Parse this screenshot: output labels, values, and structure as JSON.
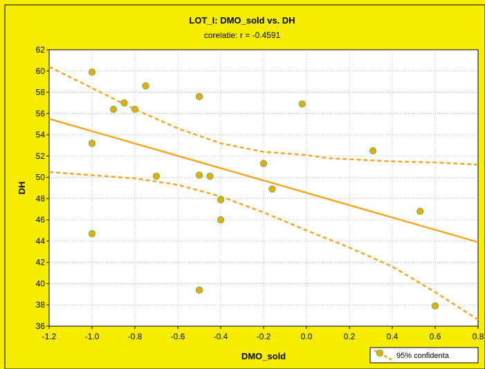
{
  "chart_data": {
    "type": "scatter",
    "title": "LOT_I: DMO_sold vs. DH",
    "subtitle": "corelatie: r = -0.4591",
    "xlabel": "DMO_sold",
    "ylabel": "DH",
    "xlim": [
      -1.2,
      0.8
    ],
    "ylim": [
      36,
      62
    ],
    "x_ticks": [
      -1.2,
      -1.0,
      -0.8,
      -0.6,
      -0.4,
      -0.2,
      0.0,
      0.2,
      0.4,
      0.6,
      0.8
    ],
    "x_tick_labels": [
      "-1.2",
      "-1.0",
      "-0.8",
      "-0.6",
      "-0.4",
      "-0.2",
      "0.0",
      "0.2",
      "0.4",
      "0.6",
      "0.8"
    ],
    "y_ticks": [
      36,
      38,
      40,
      42,
      44,
      46,
      48,
      50,
      52,
      54,
      56,
      58,
      60,
      62
    ],
    "y_tick_labels": [
      "36",
      "38",
      "40",
      "42",
      "44",
      "46",
      "48",
      "50",
      "52",
      "54",
      "56",
      "58",
      "60",
      "62"
    ],
    "grid": true,
    "legend": {
      "placement": "bottom-right",
      "entries": [
        "95% confidenta"
      ]
    },
    "points": [
      {
        "x": -1.0,
        "y": 59.9
      },
      {
        "x": -1.0,
        "y": 53.2
      },
      {
        "x": -1.0,
        "y": 44.7
      },
      {
        "x": -0.9,
        "y": 56.4
      },
      {
        "x": -0.85,
        "y": 57.0
      },
      {
        "x": -0.8,
        "y": 56.4
      },
      {
        "x": -0.75,
        "y": 58.6
      },
      {
        "x": -0.7,
        "y": 50.1
      },
      {
        "x": -0.5,
        "y": 57.6
      },
      {
        "x": -0.5,
        "y": 50.2
      },
      {
        "x": -0.5,
        "y": 39.4
      },
      {
        "x": -0.45,
        "y": 50.1
      },
      {
        "x": -0.4,
        "y": 47.9
      },
      {
        "x": -0.4,
        "y": 46.0
      },
      {
        "x": -0.2,
        "y": 51.3
      },
      {
        "x": -0.16,
        "y": 48.9
      },
      {
        "x": -0.02,
        "y": 56.9
      },
      {
        "x": 0.31,
        "y": 52.5
      },
      {
        "x": 0.53,
        "y": 46.8
      },
      {
        "x": 0.6,
        "y": 37.9
      }
    ],
    "regression": {
      "x": [
        -1.2,
        0.8
      ],
      "y": [
        55.5,
        43.9
      ]
    },
    "confidence_upper": {
      "x": [
        -1.2,
        -1.0,
        -0.8,
        -0.6,
        -0.4,
        -0.2,
        0.0,
        0.1,
        0.2,
        0.4,
        0.6,
        0.8
      ],
      "y": [
        60.4,
        58.4,
        56.4,
        54.6,
        53.2,
        52.4,
        52.1,
        51.8,
        51.7,
        51.5,
        51.4,
        51.2
      ]
    },
    "confidence_lower": {
      "x": [
        -1.2,
        -1.0,
        -0.8,
        -0.6,
        -0.4,
        -0.2,
        0.0,
        0.2,
        0.4,
        0.6,
        0.8
      ],
      "y": [
        50.5,
        50.2,
        49.9,
        49.3,
        48.2,
        46.7,
        45.0,
        43.4,
        41.6,
        39.2,
        36.6
      ]
    },
    "colors": {
      "background": "#f7ed00",
      "plot_background": "#ffffff",
      "marker_fill": "#f2a60d",
      "marker_edge": "#7fc241",
      "line": "#f5a623"
    }
  }
}
